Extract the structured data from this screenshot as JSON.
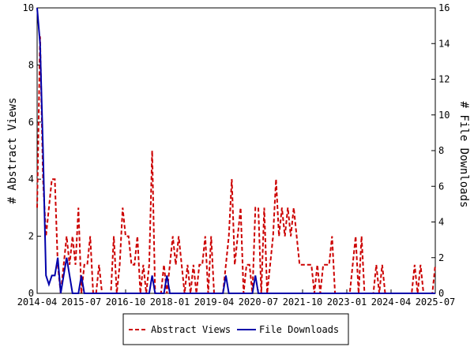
{
  "chart_data": {
    "type": "line",
    "ylabel": "# Abstract Views",
    "y2label": "# File Downloads",
    "x": [
      "2014-04",
      "2014-05",
      "2014-06",
      "2014-07",
      "2014-08",
      "2014-09",
      "2014-10",
      "2014-11",
      "2014-12",
      "2015-01",
      "2015-02",
      "2015-03",
      "2015-04",
      "2015-05",
      "2015-06",
      "2015-07",
      "2015-08",
      "2015-09",
      "2015-10",
      "2015-11",
      "2015-12",
      "2016-01",
      "2016-02",
      "2016-03",
      "2016-04",
      "2016-05",
      "2016-06",
      "2016-07",
      "2016-08",
      "2016-09",
      "2016-10",
      "2016-11",
      "2016-12",
      "2017-01",
      "2017-02",
      "2017-03",
      "2017-04",
      "2017-05",
      "2017-06",
      "2017-07",
      "2017-08",
      "2017-09",
      "2017-10",
      "2017-11",
      "2017-12",
      "2018-01",
      "2018-02",
      "2018-03",
      "2018-04",
      "2018-05",
      "2018-06",
      "2018-07",
      "2018-08",
      "2018-09",
      "2018-10",
      "2018-11",
      "2018-12",
      "2019-01",
      "2019-02",
      "2019-03",
      "2019-04",
      "2019-05",
      "2019-06",
      "2019-07",
      "2019-08",
      "2019-09",
      "2019-10",
      "2019-11",
      "2019-12",
      "2020-01",
      "2020-02",
      "2020-03",
      "2020-04",
      "2020-05",
      "2020-06",
      "2020-07",
      "2020-08",
      "2020-09",
      "2020-10",
      "2020-11",
      "2020-12",
      "2021-01",
      "2021-02",
      "2021-03",
      "2021-04",
      "2021-05",
      "2021-06",
      "2021-07",
      "2021-08",
      "2021-09",
      "2021-10",
      "2021-11",
      "2021-12",
      "2022-01",
      "2022-02",
      "2022-03",
      "2022-04",
      "2022-05",
      "2022-06",
      "2022-07",
      "2022-08",
      "2022-09",
      "2022-10",
      "2022-11",
      "2022-12",
      "2023-01",
      "2023-02",
      "2023-03",
      "2023-04",
      "2023-05",
      "2023-06",
      "2023-07",
      "2023-08",
      "2023-09",
      "2023-10",
      "2023-11",
      "2023-12",
      "2024-01",
      "2024-02",
      "2024-03",
      "2024-04",
      "2024-05",
      "2024-06",
      "2024-07",
      "2024-08",
      "2024-09",
      "2024-10",
      "2024-11",
      "2024-12",
      "2025-01",
      "2025-02",
      "2025-03",
      "2025-04",
      "2025-05",
      "2025-06",
      "2025-07"
    ],
    "xticks": [
      "2014-04",
      "2015-07",
      "2016-10",
      "2018-01",
      "2019-04",
      "2020-07",
      "2021-10",
      "2023-01",
      "2024-04",
      "2025-07"
    ],
    "series": [
      {
        "name": "Abstract Views",
        "color": "#cc0000",
        "dash": true,
        "values": [
          3,
          9,
          4,
          2,
          3,
          4,
          4,
          1,
          0,
          1,
          2,
          1,
          2,
          1,
          3,
          0,
          1,
          1,
          2,
          0,
          0,
          1,
          0,
          0,
          0,
          0,
          2,
          0,
          1,
          3,
          2,
          2,
          1,
          1,
          2,
          0,
          1,
          0,
          1,
          5,
          0,
          0,
          0,
          1,
          0,
          1,
          2,
          1,
          2,
          1,
          0,
          1,
          0,
          1,
          0,
          1,
          1,
          2,
          0,
          2,
          0,
          0,
          0,
          0,
          1,
          2,
          4,
          1,
          2,
          3,
          0,
          1,
          1,
          0,
          3,
          3,
          0,
          3,
          0,
          1,
          2,
          4,
          2,
          3,
          2,
          3,
          2,
          3,
          2,
          1,
          1,
          1,
          1,
          1,
          0,
          1,
          0,
          1,
          1,
          1,
          2,
          0,
          0,
          0,
          0,
          0,
          0,
          1,
          2,
          0,
          2,
          0,
          0,
          0,
          0,
          1,
          0,
          1,
          0,
          0,
          0,
          0,
          0,
          0,
          0,
          0,
          0,
          0,
          1,
          0,
          1,
          0,
          0,
          0,
          0,
          1
        ]
      },
      {
        "name": "File Downloads",
        "color": "#0000aa",
        "dash": false,
        "axis": "y2",
        "values": [
          16,
          14,
          8,
          1,
          0.5,
          1,
          1,
          2,
          0,
          1,
          2,
          1,
          0,
          0,
          0,
          1,
          0,
          0,
          0,
          0,
          0,
          0,
          0,
          0,
          0,
          0,
          0,
          0,
          0,
          0,
          0,
          0,
          0,
          0,
          0,
          0,
          0,
          0,
          0,
          1,
          0,
          0,
          0,
          0,
          1,
          0,
          0,
          0,
          0,
          0,
          0,
          0,
          0,
          0,
          0,
          0,
          0,
          0,
          0,
          0,
          0,
          0,
          0,
          0,
          1,
          0,
          0,
          0,
          0,
          0,
          0,
          0,
          0,
          0,
          1,
          0,
          0,
          0,
          0,
          0,
          0,
          0,
          0,
          0,
          0,
          0,
          0,
          0,
          0,
          0,
          0,
          0,
          0,
          0,
          0,
          0,
          0,
          0,
          0,
          0,
          0,
          0,
          0,
          0,
          0,
          0,
          0,
          0,
          0,
          0,
          0,
          0,
          0,
          0,
          0,
          0,
          0,
          0,
          0,
          0,
          0,
          0,
          0,
          0,
          0,
          0,
          0,
          0,
          0,
          0,
          0,
          0,
          0,
          0,
          0,
          0
        ]
      }
    ],
    "ylim": [
      0,
      10
    ],
    "yticks": [
      0,
      2,
      4,
      6,
      8,
      10
    ],
    "y2lim": [
      0,
      16
    ],
    "y2ticks": [
      0,
      2,
      4,
      6,
      8,
      10,
      12,
      14,
      16
    ],
    "legend": "bottom"
  }
}
